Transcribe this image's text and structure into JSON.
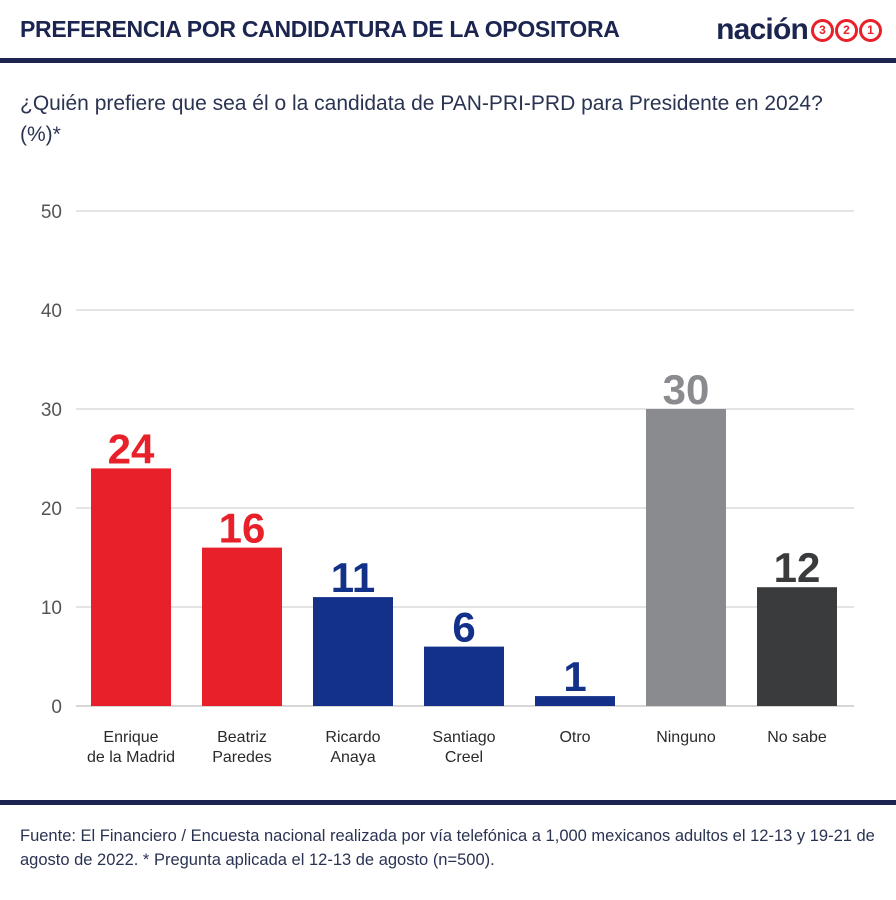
{
  "header": {
    "title": "PREFERENCIA POR CANDIDATURA DE LA OPOSITORA",
    "brand_text": "nación",
    "brand_digits": [
      "3",
      "2",
      "1"
    ]
  },
  "subtitle": "¿Quién prefiere que sea él o la candidata de PAN-PRI-PRD para Presidente en 2024? (%)*",
  "footer": "Fuente: El Financiero / Encuesta nacional realizada por vía telefónica a 1,000 mexicanos adultos el 12-13 y 19-21 de agosto de 2022. * Pregunta aplicada el 12-13 de agosto (n=500).",
  "colors": {
    "red": "#e8202a",
    "blue": "#14318a",
    "gray": "#8a8b8e",
    "dark": "#3a3b3d",
    "grid": "#d4d4d4",
    "axis_text": "#555555"
  },
  "chart_data": {
    "type": "bar",
    "title": "",
    "xlabel": "",
    "ylabel": "",
    "ylim": [
      0,
      50
    ],
    "yticks": [
      0,
      10,
      20,
      30,
      40,
      50
    ],
    "grid": true,
    "categories": [
      [
        "Enrique",
        "de la Madrid"
      ],
      [
        "Beatriz",
        "Paredes"
      ],
      [
        "Ricardo",
        "Anaya"
      ],
      [
        "Santiago",
        "Creel"
      ],
      [
        "Otro"
      ],
      [
        "Ninguno"
      ],
      [
        "No sabe"
      ]
    ],
    "values": [
      24,
      16,
      11,
      6,
      1,
      30,
      12
    ],
    "bar_colors": [
      "#e8202a",
      "#e8202a",
      "#14318a",
      "#14318a",
      "#14318a",
      "#8a8b8e",
      "#3a3b3d"
    ],
    "label_colors": [
      "#e8202a",
      "#e8202a",
      "#14318a",
      "#14318a",
      "#14318a",
      "#8a8b8e",
      "#3a3b3d"
    ]
  }
}
